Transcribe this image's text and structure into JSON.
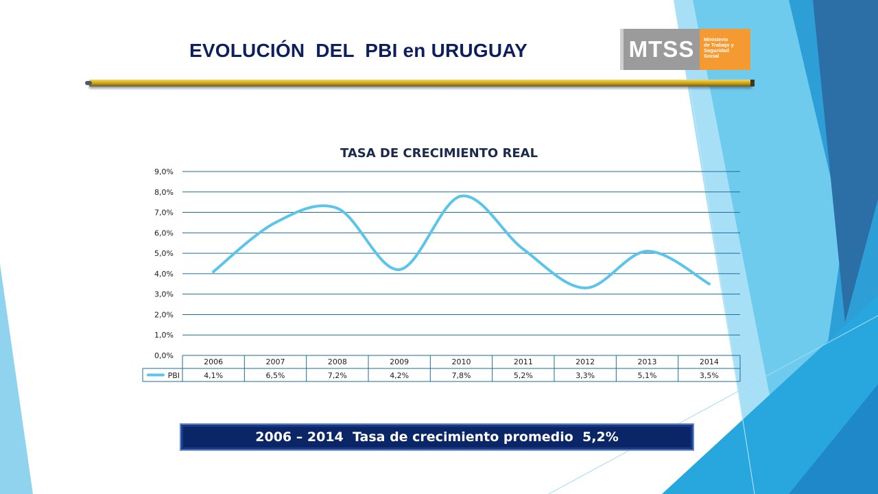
{
  "slide": {
    "title": "EVOLUCIÓN  DEL  PBI en URUGUAY",
    "summary": "2006 – 2014  Tasa de crecimiento promedio  5,2%"
  },
  "logo": {
    "acronym": "MTSS",
    "org_name": "Ministerio\nde Trabajo y\nSeguridad\nSocial",
    "colors": {
      "acronym_bg": "#9b9b9b",
      "name_bg": "#f49a30"
    }
  },
  "theme": {
    "title_color": "#0d1f5c",
    "line_color": "#5bc4ea",
    "grid_color": "#1b6d94",
    "summary_bg": "#0b2666"
  },
  "chart_data": {
    "type": "line",
    "title": "TASA DE CRECIMIENTO REAL",
    "categories": [
      "2006",
      "2007",
      "2008",
      "2009",
      "2010",
      "2011",
      "2012",
      "2013",
      "2014"
    ],
    "series": [
      {
        "name": "PBI",
        "values": [
          4.1,
          6.5,
          7.2,
          4.2,
          7.8,
          5.2,
          3.3,
          5.1,
          3.5
        ],
        "labels": [
          "4,1%",
          "6,5%",
          "7,2%",
          "4,2%",
          "7,8%",
          "5,2%",
          "3,3%",
          "5,1%",
          "3,5%"
        ]
      }
    ],
    "y_ticks": [
      "0,0%",
      "1,0%",
      "2,0%",
      "3,0%",
      "4,0%",
      "5,0%",
      "6,0%",
      "7,0%",
      "8,0%",
      "9,0%"
    ],
    "ylim": [
      0,
      9
    ],
    "grid": true,
    "legend": "data-table",
    "smooth": true
  }
}
